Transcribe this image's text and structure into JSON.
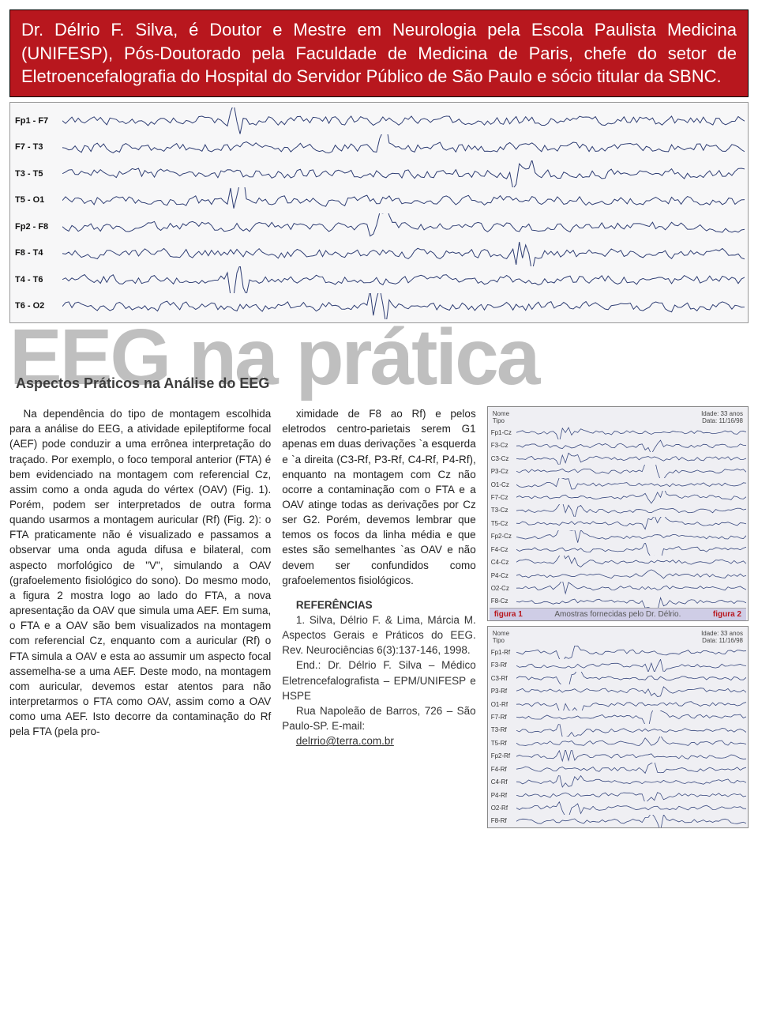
{
  "banner": {
    "text": "Dr. Délrio F. Silva, é Doutor e Mestre em Neurologia pela Escola Paulista Medicina (UNIFESP), Pós-Doutorado pela Faculdade de Medicina de Paris, chefe do setor de Eletroencefalografia do Hospital do Servidor Público de São Paulo e sócio titular da SBNC.",
    "background_color": "#b8171e",
    "text_color": "#ffffff"
  },
  "eeg_top": {
    "channels": [
      "Fp1 - F7",
      "F7 - T3",
      "T3 - T5",
      "T5 - O1",
      "Fp2 - F8",
      "F8 - T4",
      "T4 - T6",
      "T6 - O2"
    ],
    "stroke": "#2e3d73",
    "background": "#f7f7f8"
  },
  "title": {
    "big": "EEG na prática",
    "big_color": "#bfbfbf",
    "subtitle": "Aspectos Práticos na Análise do EEG",
    "subtitle_color": "#3d3d3d"
  },
  "body_col1": "Na dependência do tipo de montagem escolhida para a análise do EEG, a atividade epileptiforme focal (AEF) pode conduzir a uma errônea interpretação do traçado. Por exemplo, o foco temporal anterior (FTA) é bem evidenciado na montagem com referencial Cz, assim como a onda aguda do vértex (OAV) (Fig. 1). Porém, podem ser interpretados de outra forma quando usarmos a montagem auricular (Rf) (Fig. 2): o FTA praticamente não é visualizado e passamos a observar uma onda aguda difusa e bilateral, com aspecto morfológico de \"V\", simulando a OAV (grafoelemento fisiológico do sono). Do mesmo modo, a figura 2 mostra logo ao lado do FTA, a nova apresentação da OAV que simula uma AEF. Em suma, o FTA e a OAV são bem visualizados na montagem com referencial Cz, enquanto com a auricular (Rf) o FTA simula a OAV e esta ao assumir um aspecto focal assemelha-se a uma AEF. Deste modo, na montagem com auricular, devemos estar atentos para não interpretarmos o FTA como OAV, assim como a OAV como uma AEF. Isto decorre da contaminação do Rf pela FTA (pela pro-",
  "body_col2": "ximidade de F8 ao Rf) e pelos eletrodos centro-parietais serem G1 apenas em duas derivações `a esquerda e `a direita (C3-Rf, P3-Rf, C4-Rf, P4-Rf), enquanto na montagem com Cz não ocorre a contaminação com o FTA e a OAV atinge todas as derivações por Cz ser G2. Porém, devemos lembrar que temos os focos da linha média e que estes são semelhantes `as OAV e não devem ser confundidos como grafoelementos fisiológicos.",
  "references": {
    "title": "REFERÊNCIAS",
    "items": [
      "1. Silva, Délrio F. & Lima, Márcia M. Aspectos Gerais e Práticos do EEG. Rev. Neurociências 6(3):137-146, 1998.",
      "End.: Dr. Délrio F. Silva – Médico Eletrencefalografista – EPM/UNIFESP e HSPE",
      "Rua Napoleão de Barros, 726 – São Paulo-SP. E-mail:"
    ],
    "email": "delrrio@terra.com.br"
  },
  "fig1": {
    "header_left_name": "Nome",
    "header_left_type": "Tipo",
    "header_right_a": "Idade: 33 anos",
    "header_right_b": "Data: 11/16/98",
    "channels": [
      "Fp1-Cz",
      "F3-Cz",
      "C3-Cz",
      "P3-Cz",
      "O1-Cz",
      "F7-Cz",
      "T3-Cz",
      "T5-Cz",
      "Fp2-Cz",
      "F4-Cz",
      "C4-Cz",
      "P4-Cz",
      "O2-Cz",
      "F8-Cz"
    ],
    "stroke": "#3b4b80",
    "caption_left": "figura 1",
    "caption_mid": "Amostras fornecidas pelo Dr. Délrio.",
    "caption_right": "figura 2"
  },
  "fig2": {
    "header_left_name": "Nome",
    "header_left_type": "Tipo",
    "header_right_a": "Idade: 33 anos",
    "header_right_b": "Data: 11/16/98",
    "channels": [
      "Fp1-Rf",
      "F3-Rf",
      "C3-Rf",
      "P3-Rf",
      "O1-Rf",
      "F7-Rf",
      "T3-Rf",
      "T5-Rf",
      "Fp2-Rf",
      "F4-Rf",
      "C4-Rf",
      "P4-Rf",
      "O2-Rf",
      "F8-Rf"
    ],
    "stroke": "#3b4b80"
  },
  "caption_bg": "#cfcde6",
  "caption_accent": "#b8171e"
}
